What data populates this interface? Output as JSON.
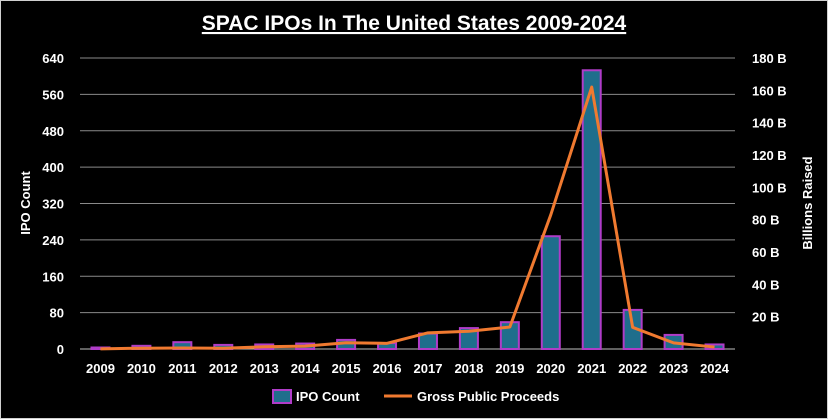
{
  "chart_data": {
    "type": "bar",
    "title": "SPAC IPOs In The United States 2009-2024",
    "xlabel": "",
    "ylabel": "IPO Count",
    "y2label": "Billions Raised",
    "categories": [
      "2009",
      "2010",
      "2011",
      "2012",
      "2013",
      "2014",
      "2015",
      "2016",
      "2017",
      "2018",
      "2019",
      "2020",
      "2021",
      "2022",
      "2023",
      "2024"
    ],
    "ylim": [
      0,
      640
    ],
    "yticks": [
      0,
      80,
      160,
      240,
      320,
      400,
      480,
      560,
      640
    ],
    "ytick_labels": [
      "0",
      "80",
      "160",
      "240",
      "320",
      "400",
      "480",
      "560",
      "640"
    ],
    "y2lim": [
      0,
      180
    ],
    "y2ticks": [
      20,
      40,
      60,
      80,
      100,
      120,
      140,
      160,
      180
    ],
    "y2tick_labels": [
      "20 B",
      "40 B",
      "60 B",
      "80 B",
      "100 B",
      "120 B",
      "140 B",
      "160 B",
      "180 B"
    ],
    "grid": true,
    "legend_position": "bottom",
    "series": [
      {
        "name": "IPO Count",
        "kind": "bar",
        "axis": "left",
        "fill": "#1f6e8c",
        "edge": "#b03cc8",
        "values": [
          1,
          7,
          15,
          9,
          10,
          12,
          20,
          13,
          34,
          46,
          59,
          248,
          613,
          86,
          31,
          10
        ]
      },
      {
        "name": "Gross Public Proceeds",
        "kind": "line",
        "axis": "right",
        "color": "#f07a30",
        "values": [
          0.1,
          0.5,
          0.6,
          0.5,
          1.4,
          1.8,
          3.9,
          3.5,
          10,
          11,
          13.6,
          83,
          162,
          13.4,
          3.8,
          1.2
        ]
      }
    ]
  }
}
